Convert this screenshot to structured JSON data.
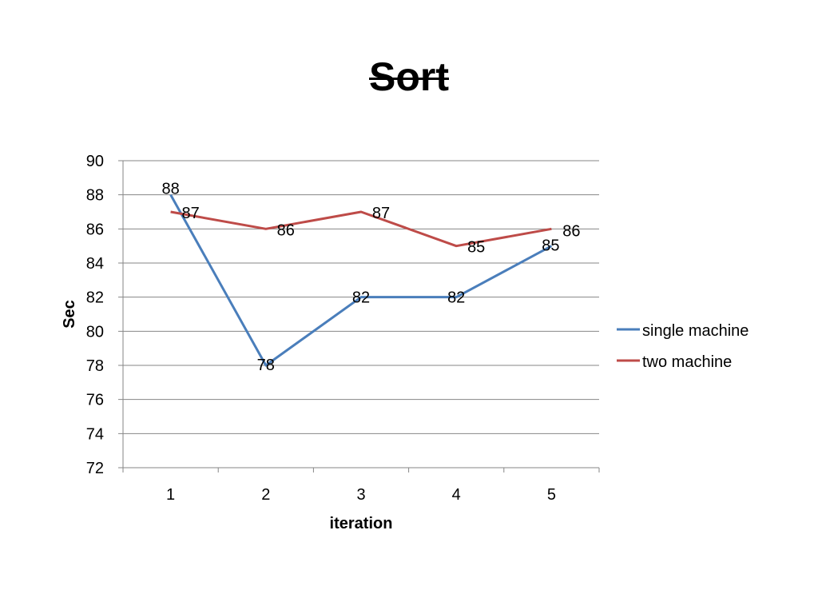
{
  "chart_data": {
    "type": "line",
    "title": "Sort",
    "xlabel": "iteration",
    "ylabel": "Sec",
    "categories": [
      "1",
      "2",
      "3",
      "4",
      "5"
    ],
    "ylim": [
      72,
      90
    ],
    "yticks": [
      "72",
      "74",
      "76",
      "78",
      "80",
      "82",
      "84",
      "86",
      "88",
      "90"
    ],
    "grid": true,
    "legend": "right",
    "series": [
      {
        "name": "single machine",
        "values": [
          88,
          78,
          82,
          82,
          85
        ],
        "color": "#4A7EBB"
      },
      {
        "name": "two machine",
        "values": [
          87,
          86,
          87,
          85,
          86
        ],
        "color": "#BE4B48"
      }
    ]
  }
}
